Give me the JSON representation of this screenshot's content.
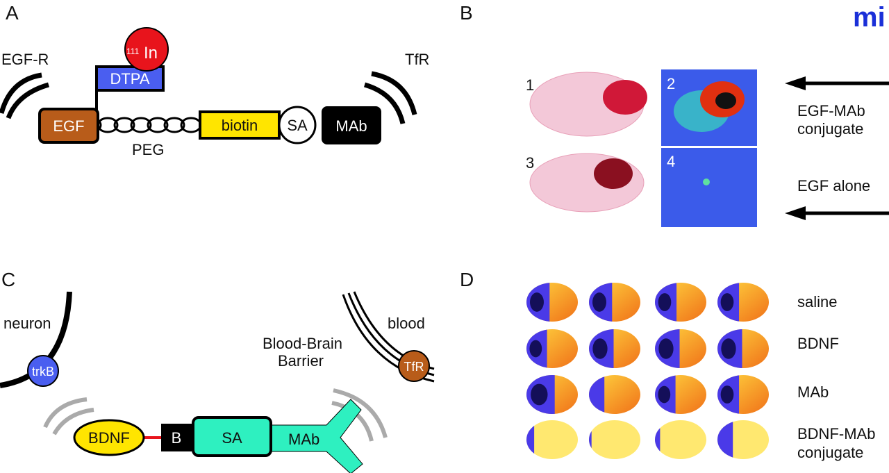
{
  "logo": "mi",
  "panelA": {
    "letter": "A",
    "egfr": "EGF-R",
    "tfr": "TfR",
    "isotope_mass": "111",
    "isotope_symbol": "In",
    "dtpa": "DTPA",
    "egf": "EGF",
    "peg": "PEG",
    "biotin": "biotin",
    "sa": "SA",
    "mab": "MAb",
    "colors": {
      "egf": "#b85c1a",
      "dtpa": "#4a5ef0",
      "indium": "#e8141c",
      "biotin": "#ffe500",
      "mab": "#000000"
    }
  },
  "panelB": {
    "letter": "B",
    "images": [
      "1",
      "2",
      "3",
      "4"
    ],
    "label_top_line1": "EGF-MAb",
    "label_top_line2": "conjugate",
    "label_bottom": "EGF alone"
  },
  "panelC": {
    "letter": "C",
    "neuron": "neuron",
    "blood": "blood",
    "bbb_line1": "Blood-Brain",
    "bbb_line2": "Barrier",
    "trkb": "trkB",
    "tfr": "TfR",
    "bdnf": "BDNF",
    "b": "B",
    "sa": "SA",
    "mab": "MAb",
    "colors": {
      "trkb": "#4a5ef0",
      "tfr": "#b85c1a",
      "bdnf": "#ffe500",
      "sa_mab": "#2ef0c0",
      "linker": "#e8141c"
    }
  },
  "panelD": {
    "letter": "D",
    "rows": [
      {
        "label": "saline",
        "infarct": [
          0.45,
          0.45,
          0.42,
          0.42
        ]
      },
      {
        "label": "BDNF",
        "infarct": [
          0.4,
          0.48,
          0.48,
          0.48
        ]
      },
      {
        "label": "MAb",
        "infarct": [
          0.55,
          0.3,
          0.4,
          0.42
        ]
      },
      {
        "label_line1": "BDNF-MAb",
        "label_line2": "conjugate",
        "infarct": [
          0.15,
          0.05,
          0.1,
          0.3
        ]
      }
    ]
  }
}
